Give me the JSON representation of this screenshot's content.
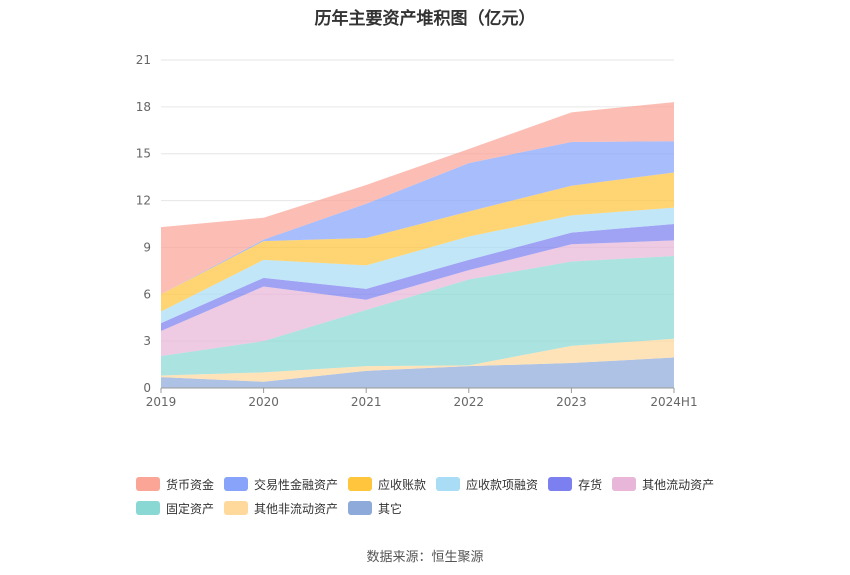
{
  "chart_data": {
    "type": "area",
    "stacked": true,
    "title": "历年主要资产堆积图（亿元）",
    "categories": [
      "2019",
      "2020",
      "2021",
      "2022",
      "2023",
      "2024H1"
    ],
    "ylim": [
      0,
      21
    ],
    "yticks": [
      0,
      3,
      6,
      9,
      12,
      15,
      18,
      21
    ],
    "grid": true,
    "series": [
      {
        "name": "其它",
        "color": "#8eaadb",
        "values": [
          0.7,
          0.4,
          1.1,
          1.4,
          1.6,
          1.95
        ]
      },
      {
        "name": "其他非流动资产",
        "color": "#ffd89c",
        "values": [
          0.1,
          0.6,
          0.3,
          0.05,
          1.1,
          1.2
        ]
      },
      {
        "name": "固定资产",
        "color": "#8ad8d4",
        "values": [
          1.25,
          2.0,
          3.6,
          5.5,
          5.4,
          5.3
        ]
      },
      {
        "name": "其他流动资产",
        "color": "#e8b6d8",
        "values": [
          1.6,
          3.5,
          0.65,
          0.6,
          1.1,
          1.0
        ]
      },
      {
        "name": "存货",
        "color": "#7b7ff0",
        "values": [
          0.5,
          0.55,
          0.7,
          0.65,
          0.75,
          1.05
        ]
      },
      {
        "name": "应收款项融资",
        "color": "#a8ddf5",
        "values": [
          0.75,
          1.15,
          1.5,
          1.5,
          1.1,
          1.05
        ]
      },
      {
        "name": "应收账款",
        "color": "#ffc53d",
        "values": [
          1.1,
          1.2,
          1.75,
          1.6,
          1.9,
          2.25
        ]
      },
      {
        "name": "交易性金融资产",
        "color": "#87a3fa",
        "values": [
          0.0,
          0.1,
          2.2,
          3.1,
          2.8,
          2.0
        ]
      },
      {
        "name": "货币资金",
        "color": "#fba597",
        "values": [
          4.3,
          1.4,
          1.2,
          0.9,
          1.9,
          2.5
        ]
      }
    ]
  },
  "legend": {
    "row1": [
      "货币资金",
      "交易性金融资产",
      "应收账款",
      "应收款项融资",
      "存货",
      "其他流动资产"
    ],
    "row2": [
      "固定资产",
      "其他非流动资产",
      "其它"
    ]
  },
  "source": "数据来源：恒生聚源"
}
